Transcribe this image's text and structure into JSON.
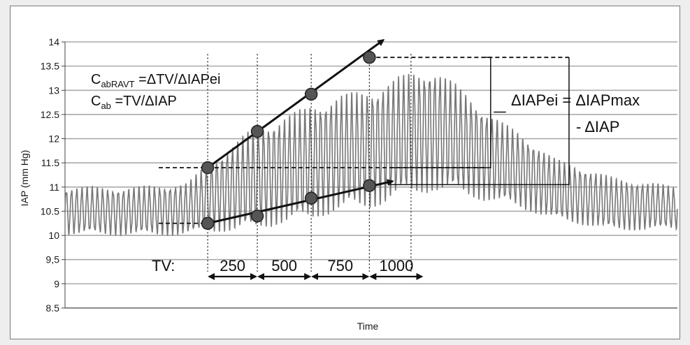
{
  "chart_data": {
    "type": "line",
    "ylabel": "IAP (mm Hg)",
    "xlabel": "Time",
    "ylim": [
      8.5,
      14
    ],
    "y_ticks": [
      "8.5",
      "9",
      "9,5",
      "10",
      "10.5",
      "11",
      "11.5",
      "12",
      "12.5",
      "13",
      "13.5",
      "14"
    ],
    "y_tick_values": [
      8.5,
      9,
      9.5,
      10,
      10.5,
      11,
      11.5,
      12,
      12.5,
      13,
      13.5,
      14
    ],
    "grid": true,
    "series": [
      {
        "values_note": "",
        "x": [
          0.0,
          0.1,
          0.2,
          0.3,
          0.4,
          0.5,
          0.6,
          0.7,
          0.8,
          0.9,
          1.0
        ],
        "peak_envelope": [
          11.0,
          11.0,
          11.1,
          12.2,
          12.7,
          13.1,
          13.5,
          12.5,
          11.6,
          11.2,
          11.0
        ],
        "trough_envelope": [
          10.0,
          10.0,
          10.0,
          10.1,
          10.3,
          10.6,
          10.9,
          10.7,
          10.3,
          10.1,
          10.1
        ]
      }
    ],
    "upper_points": [
      {
        "x": 0.233,
        "y": 11.4
      },
      {
        "x": 0.314,
        "y": 12.15
      },
      {
        "x": 0.402,
        "y": 12.92
      },
      {
        "x": 0.497,
        "y": 13.68
      }
    ],
    "lower_points": [
      {
        "x": 0.233,
        "y": 10.25
      },
      {
        "x": 0.314,
        "y": 10.4
      },
      {
        "x": 0.402,
        "y": 10.77
      },
      {
        "x": 0.497,
        "y": 11.03
      }
    ],
    "tv_label": "TV:",
    "tv_values": [
      "250",
      "500",
      "750",
      "1000"
    ]
  },
  "annotations": {
    "formula1": {
      "prefix": "C",
      "sub": "abRAVT",
      "rest": " =ΔTV/ΔIAPei"
    },
    "formula2": {
      "prefix": "C",
      "sub": "ab",
      "rest": " =TV/ΔIAP"
    },
    "delta_line1": "ΔIAPei = ΔIAPmax",
    "delta_line2": "- ΔIAP"
  },
  "colors": {
    "trace": "#777777",
    "marker": "#555555",
    "grid": "#aaaaaa",
    "ink": "#111111"
  }
}
